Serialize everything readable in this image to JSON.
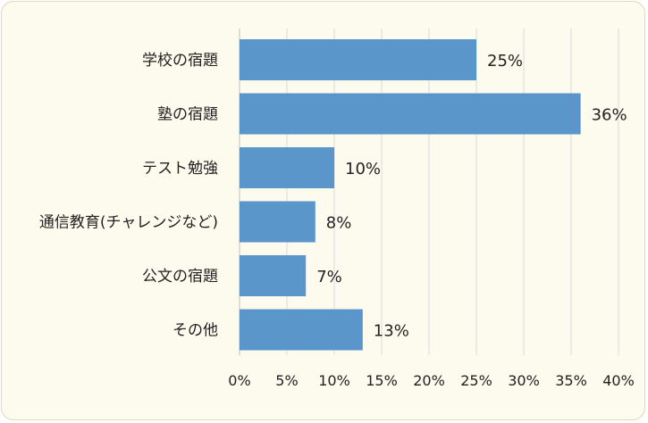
{
  "chart_data": {
    "type": "bar",
    "orientation": "horizontal",
    "categories": [
      "学校の宿題",
      "塾の宿題",
      "テスト勉強",
      "通信教育(チャレンジなど)",
      "公文の宿題",
      "その他"
    ],
    "values": [
      25,
      36,
      10,
      8,
      7,
      13
    ],
    "data_labels": [
      "25%",
      "36%",
      "10%",
      "8%",
      "7%",
      "13%"
    ],
    "xlim": [
      0,
      40
    ],
    "x_ticks": [
      "0%",
      "5%",
      "10%",
      "15%",
      "20%",
      "25%",
      "30%",
      "35%",
      "40%"
    ],
    "grid": "vertical",
    "bar_color": "#5b96ca",
    "background_color": "#fdfbee",
    "title": "",
    "xlabel": "",
    "ylabel": ""
  }
}
